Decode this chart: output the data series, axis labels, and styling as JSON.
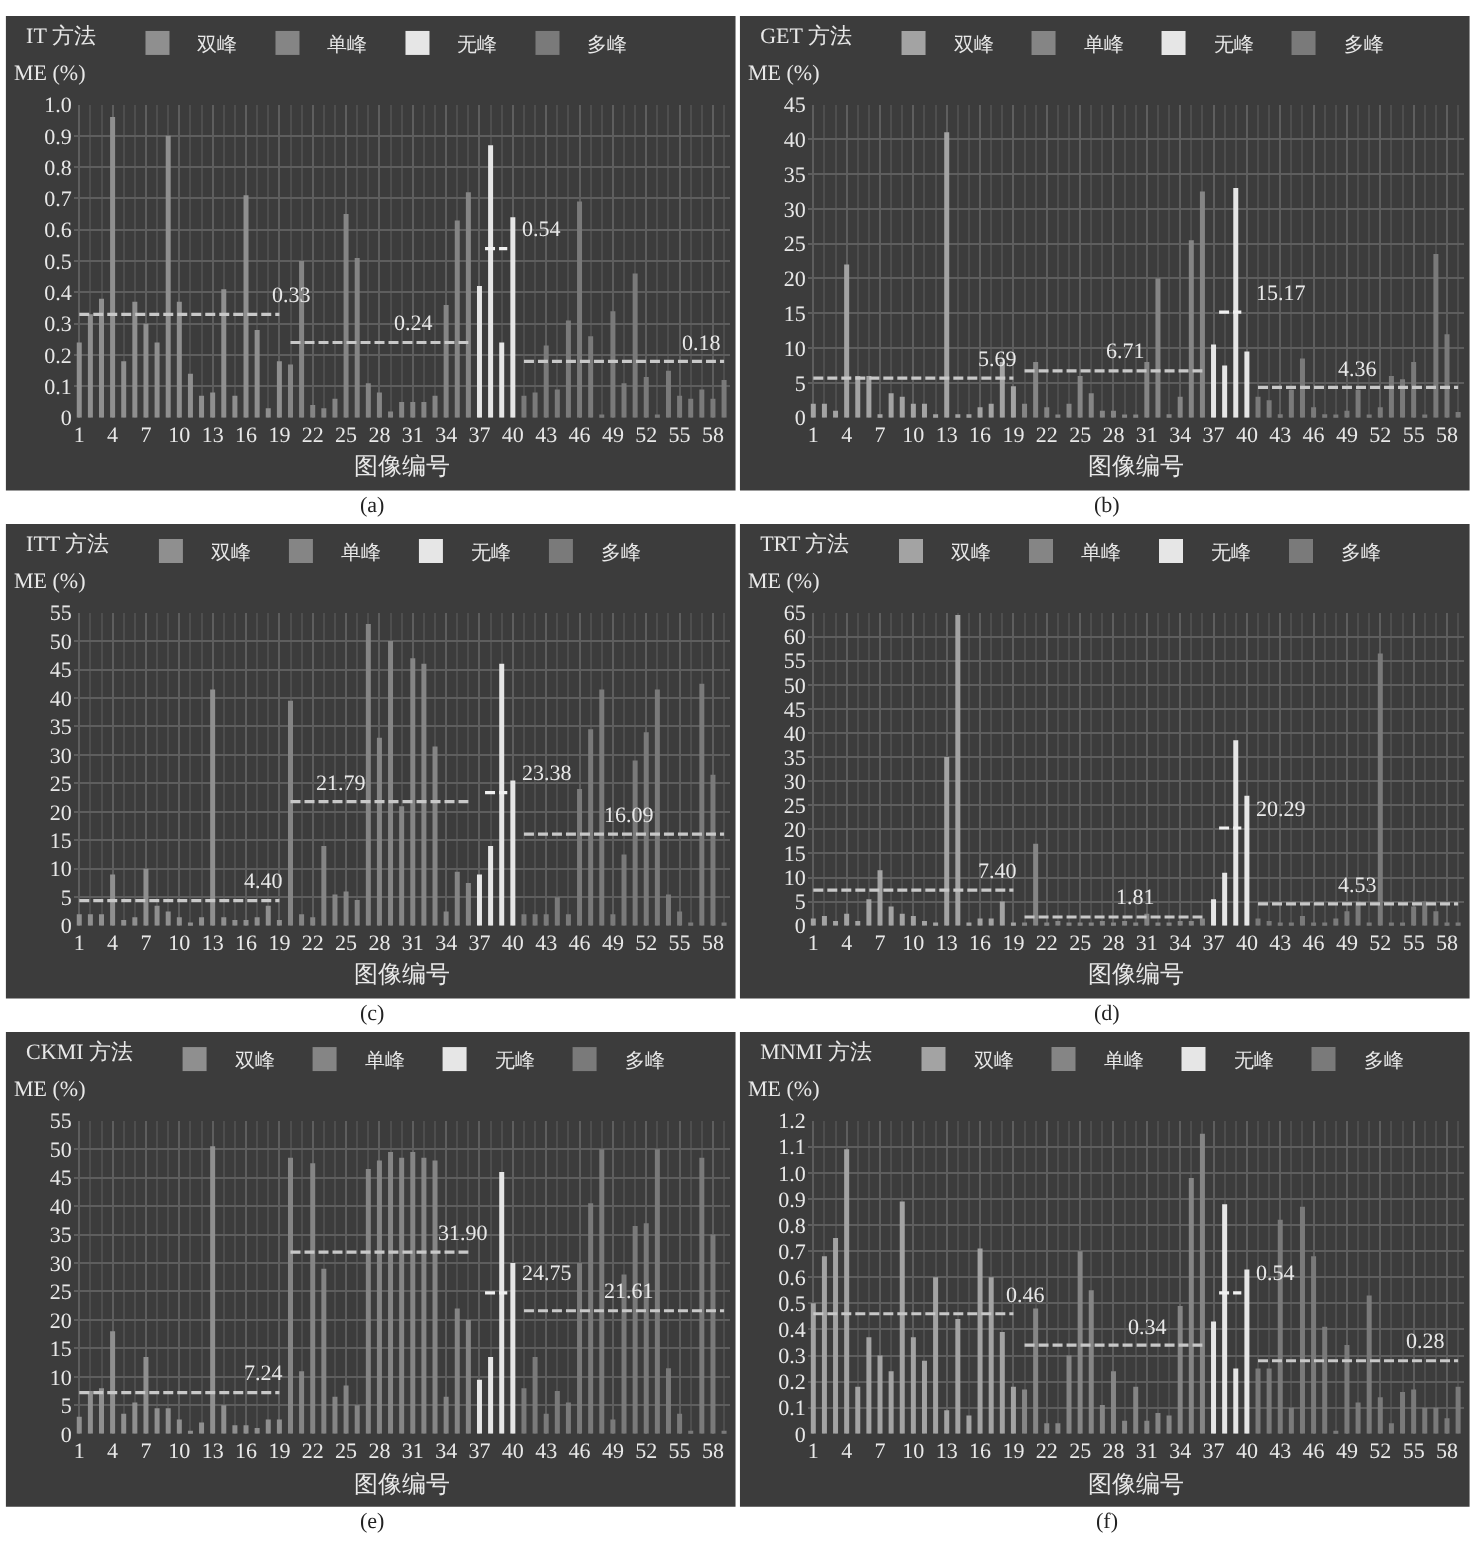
{
  "chart_data": [
    {
      "type": "bar",
      "title": "IT 方法",
      "xlabel": "图像编号",
      "ylabel": "ME (%)",
      "legend": "top",
      "grid": true,
      "xlim": [
        0.5,
        59.5
      ],
      "xticks": [
        1,
        4,
        7,
        10,
        13,
        16,
        19,
        22,
        25,
        28,
        31,
        34,
        37,
        40,
        43,
        46,
        49,
        52,
        55,
        58
      ],
      "ylim": [
        0,
        1
      ],
      "yticks": [
        0,
        0.1,
        0.2,
        0.3,
        0.4,
        0.5,
        0.6,
        0.7,
        0.8,
        0.9,
        {
          "value": 1,
          "label": "1.0"
        }
      ],
      "series": [
        {
          "name": "双峰",
          "color": "#8f8f8f",
          "x": [
            1,
            2,
            3,
            4,
            5,
            6,
            7,
            8,
            9,
            10,
            11,
            12,
            13,
            14,
            15,
            16,
            17,
            18,
            19
          ],
          "values": [
            0.24,
            0.33,
            0.38,
            0.96,
            0.18,
            0.37,
            0.3,
            0.24,
            0.9,
            0.37,
            0.14,
            0.07,
            0.08,
            0.41,
            0.07,
            0.71,
            0.28,
            0.03,
            0.18
          ]
        },
        {
          "name": "单峰",
          "color": "#858585",
          "x": [
            20,
            21,
            22,
            23,
            24,
            25,
            26,
            27,
            28,
            29,
            30,
            31,
            32,
            33,
            34,
            35,
            36
          ],
          "values": [
            0.17,
            0.5,
            0.04,
            0.03,
            0.06,
            0.65,
            0.51,
            0.11,
            0.08,
            0.02,
            0.05,
            0.05,
            0.05,
            0.07,
            0.36,
            0.63,
            0.72
          ]
        },
        {
          "name": "无峰",
          "color": "#e6e6e6",
          "x": [
            37,
            38,
            39,
            40
          ],
          "values": [
            0.42,
            0.87,
            0.24,
            0.64
          ]
        },
        {
          "name": "多峰",
          "color": "#7a7a7a",
          "x": [
            41,
            42,
            43,
            44,
            45,
            46,
            47,
            48,
            49,
            50,
            51,
            52,
            53,
            54,
            55,
            56,
            57,
            58,
            59
          ],
          "values": [
            0.07,
            0.08,
            0.23,
            0.09,
            0.31,
            0.69,
            0.26,
            0.01,
            0.34,
            0.11,
            0.46,
            0.13,
            0.01,
            0.15,
            0.07,
            0.06,
            0.09,
            0.06,
            0.12
          ]
        },
        {
          "type": "line",
          "color": "#c8c8c8",
          "line_style": "dashed",
          "x": [
            1,
            19
          ],
          "values": [
            0.33,
            0.33
          ]
        },
        {
          "type": "line",
          "color": "#c8c8c8",
          "line_style": "dashed",
          "x": [
            20,
            36
          ],
          "values": [
            0.24,
            0.24
          ]
        },
        {
          "type": "line",
          "color": "#f0f0f0",
          "line_style": "dashed",
          "x": [
            37.5,
            39.5
          ],
          "values": [
            0.54,
            0.54
          ]
        },
        {
          "type": "line",
          "color": "#c8c8c8",
          "line_style": "dashed",
          "x": [
            41,
            59
          ],
          "values": [
            0.18,
            0.18
          ]
        }
      ],
      "annotations": [
        {
          "text": "0.33",
          "x": 17,
          "y": 0.33
        },
        {
          "text": "0.24",
          "x": 28,
          "y": 0.24
        },
        {
          "text": "0.54",
          "x": 39.5,
          "y": 0.54
        },
        {
          "text": "0.18",
          "x": 54,
          "y": 0.18
        },
        "(a)"
      ]
    },
    {
      "type": "bar",
      "title": "GET 方法",
      "xlabel": "图像编号",
      "ylabel": "ME (%)",
      "legend": "top",
      "grid": true,
      "xlim": [
        0.5,
        59.5
      ],
      "xticks": [
        1,
        4,
        7,
        10,
        13,
        16,
        19,
        22,
        25,
        28,
        31,
        34,
        37,
        40,
        43,
        46,
        49,
        52,
        55,
        58
      ],
      "ylim": [
        0,
        45
      ],
      "yticks": [
        0,
        5,
        10,
        15,
        20,
        25,
        30,
        35,
        40,
        45
      ],
      "series": [
        {
          "name": "双峰",
          "color": "#a3a3a3",
          "x": [
            1,
            2,
            3,
            4,
            5,
            6,
            7,
            8,
            9,
            10,
            11,
            12,
            13,
            14,
            15,
            16,
            17,
            18,
            19
          ],
          "values": [
            2,
            2,
            1,
            22,
            6,
            6,
            0.5,
            3.5,
            3,
            2,
            2,
            0.5,
            41,
            0.5,
            0.5,
            1.5,
            2,
            8,
            4.5
          ]
        },
        {
          "name": "单峰",
          "color": "#858585",
          "x": [
            20,
            21,
            22,
            23,
            24,
            25,
            26,
            27,
            28,
            29,
            30,
            31,
            32,
            33,
            34,
            35,
            36
          ],
          "values": [
            2,
            8,
            1.5,
            0.3,
            2,
            6,
            3.5,
            1,
            1,
            0.3,
            0.3,
            8,
            20,
            0.5,
            3,
            25.5,
            32.5
          ]
        },
        {
          "name": "无峰",
          "color": "#e6e6e6",
          "x": [
            37,
            38,
            39,
            40
          ],
          "values": [
            10.5,
            7.5,
            33,
            9.5
          ]
        },
        {
          "name": "多峰",
          "color": "#7a7a7a",
          "x": [
            41,
            42,
            43,
            44,
            45,
            46,
            47,
            48,
            49,
            50,
            51,
            52,
            53,
            54,
            55,
            56,
            57,
            58,
            59
          ],
          "values": [
            3,
            2.5,
            0.5,
            4,
            8.5,
            1.5,
            0.5,
            0.3,
            1,
            4,
            0.3,
            1.5,
            6,
            5.5,
            8,
            0.3,
            23.5,
            12,
            0.8
          ]
        },
        {
          "type": "line",
          "color": "#c8c8c8",
          "line_style": "dashed",
          "x": [
            1,
            19
          ],
          "values": [
            5.69,
            5.69
          ]
        },
        {
          "type": "line",
          "color": "#c8c8c8",
          "line_style": "dashed",
          "x": [
            20,
            36
          ],
          "values": [
            6.71,
            6.71
          ]
        },
        {
          "type": "line",
          "color": "#f0f0f0",
          "line_style": "dashed",
          "x": [
            37.5,
            39.5
          ],
          "values": [
            15.17,
            15.17
          ]
        },
        {
          "type": "line",
          "color": "#c8c8c8",
          "line_style": "dashed",
          "x": [
            41,
            59
          ],
          "values": [
            4.36,
            4.36
          ]
        }
      ],
      "annotations": [
        {
          "text": "5.69",
          "x": 14.5,
          "y": 5.69
        },
        {
          "text": "6.71",
          "x": 26,
          "y": 6.71
        },
        {
          "text": "15.17",
          "x": 39.5,
          "y": 15.17
        },
        {
          "text": "4.36",
          "x": 47,
          "y": 4.36
        },
        "(b)"
      ]
    },
    {
      "type": "bar",
      "title": "ITT 方法",
      "xlabel": "图像编号",
      "ylabel": "ME (%)",
      "legend": "top",
      "grid": true,
      "xlim": [
        0.5,
        59.5
      ],
      "xticks": [
        1,
        4,
        7,
        10,
        13,
        16,
        19,
        22,
        25,
        28,
        31,
        34,
        37,
        40,
        43,
        46,
        49,
        52,
        55,
        58
      ],
      "ylim": [
        0,
        55
      ],
      "yticks": [
        0,
        5,
        10,
        15,
        20,
        25,
        30,
        35,
        40,
        45,
        50,
        55
      ],
      "series": [
        {
          "name": "双峰",
          "color": "#8f8f8f",
          "x": [
            1,
            2,
            3,
            4,
            5,
            6,
            7,
            8,
            9,
            10,
            11,
            12,
            13,
            14,
            15,
            16,
            17,
            18,
            19
          ],
          "values": [
            2,
            2,
            2,
            9,
            1,
            1.5,
            10,
            3.5,
            2.5,
            1.5,
            0.5,
            1.5,
            41.5,
            1.5,
            1,
            1,
            1.5,
            3.5,
            1
          ]
        },
        {
          "name": "单峰",
          "color": "#858585",
          "x": [
            20,
            21,
            22,
            23,
            24,
            25,
            26,
            27,
            28,
            29,
            30,
            31,
            32,
            33,
            34,
            35,
            36
          ],
          "values": [
            39.5,
            2,
            1.5,
            14,
            5.5,
            6,
            4.5,
            53,
            33,
            50,
            21,
            47,
            46,
            31.5,
            2.5,
            9.5,
            7.5
          ]
        },
        {
          "name": "无峰",
          "color": "#e6e6e6",
          "x": [
            37,
            38,
            39,
            40
          ],
          "values": [
            9,
            14,
            46,
            25.5
          ]
        },
        {
          "name": "多峰",
          "color": "#7a7a7a",
          "x": [
            41,
            42,
            43,
            44,
            45,
            46,
            47,
            48,
            49,
            50,
            51,
            52,
            53,
            54,
            55,
            56,
            57,
            58,
            59
          ],
          "values": [
            2,
            2,
            2,
            5,
            2,
            24,
            34.5,
            41.5,
            2,
            12.5,
            29,
            34,
            41.5,
            5.5,
            2.5,
            0.3,
            42.5,
            26.5,
            0.5
          ]
        },
        {
          "type": "line",
          "color": "#c8c8c8",
          "line_style": "dashed",
          "x": [
            1,
            19
          ],
          "values": [
            4.4,
            4.4
          ]
        },
        {
          "type": "line",
          "color": "#c8c8c8",
          "line_style": "dashed",
          "x": [
            20,
            36
          ],
          "values": [
            21.79,
            21.79
          ]
        },
        {
          "type": "line",
          "color": "#f0f0f0",
          "line_style": "dashed",
          "x": [
            37.5,
            39.5
          ],
          "values": [
            23.38,
            23.38
          ]
        },
        {
          "type": "line",
          "color": "#c8c8c8",
          "line_style": "dashed",
          "x": [
            41,
            59
          ],
          "values": [
            16.09,
            16.09
          ]
        }
      ],
      "annotations": [
        {
          "text": "4.40",
          "x": 14.5,
          "y": 4.4
        },
        {
          "text": "21.79",
          "x": 21,
          "y": 21.79
        },
        {
          "text": "23.38",
          "x": 39.5,
          "y": 23.38
        },
        {
          "text": "16.09",
          "x": 47,
          "y": 16.09
        },
        "(c)"
      ]
    },
    {
      "type": "bar",
      "title": "TRT 方法",
      "xlabel": "图像编号",
      "ylabel": "ME (%)",
      "legend": "top",
      "grid": true,
      "xlim": [
        0.5,
        59.5
      ],
      "xticks": [
        1,
        4,
        7,
        10,
        13,
        16,
        19,
        22,
        25,
        28,
        31,
        34,
        37,
        40,
        43,
        46,
        49,
        52,
        55,
        58
      ],
      "ylim": [
        0,
        65
      ],
      "yticks": [
        0,
        5,
        10,
        15,
        20,
        25,
        30,
        35,
        40,
        45,
        50,
        55,
        60,
        65
      ],
      "series": [
        {
          "name": "双峰",
          "color": "#a3a3a3",
          "x": [
            1,
            2,
            3,
            4,
            5,
            6,
            7,
            8,
            9,
            10,
            11,
            12,
            13,
            14,
            15,
            16,
            17,
            18,
            19
          ],
          "values": [
            1.5,
            2,
            1,
            2.5,
            1,
            5.5,
            11.5,
            4,
            2.5,
            2,
            1,
            0.5,
            35,
            64.5,
            0.3,
            1.5,
            1.5,
            5,
            0.5
          ]
        },
        {
          "name": "单峰",
          "color": "#858585",
          "x": [
            20,
            21,
            22,
            23,
            24,
            25,
            26,
            27,
            28,
            29,
            30,
            31,
            32,
            33,
            34,
            35,
            36
          ],
          "values": [
            0.5,
            17,
            0.5,
            1,
            0.5,
            0.5,
            0.5,
            1,
            0.5,
            1,
            0.5,
            2.5,
            0.5,
            0.5,
            1,
            1,
            1.5
          ]
        },
        {
          "name": "无峰",
          "color": "#e6e6e6",
          "x": [
            37,
            38,
            39,
            40
          ],
          "values": [
            5.5,
            11,
            38.5,
            27
          ]
        },
        {
          "name": "多峰",
          "color": "#7a7a7a",
          "x": [
            41,
            42,
            43,
            44,
            45,
            46,
            47,
            48,
            49,
            50,
            51,
            52,
            53,
            54,
            55,
            56,
            57,
            58,
            59
          ],
          "values": [
            1.5,
            1,
            0.3,
            0.5,
            2,
            0.5,
            0.3,
            1.5,
            3,
            5,
            0.5,
            56.5,
            0.3,
            0.5,
            4,
            5,
            3,
            0.5,
            0.5
          ]
        },
        {
          "type": "line",
          "color": "#c8c8c8",
          "line_style": "dashed",
          "x": [
            1,
            19
          ],
          "values": [
            7.4,
            7.4
          ]
        },
        {
          "type": "line",
          "color": "#c8c8c8",
          "line_style": "dashed",
          "x": [
            20,
            36
          ],
          "values": [
            1.81,
            1.81
          ]
        },
        {
          "type": "line",
          "color": "#f0f0f0",
          "line_style": "dashed",
          "x": [
            37.5,
            39.5
          ],
          "values": [
            20.29,
            20.29
          ]
        },
        {
          "type": "line",
          "color": "#c8c8c8",
          "line_style": "dashed",
          "x": [
            41,
            59
          ],
          "values": [
            4.53,
            4.53
          ]
        }
      ],
      "annotations": [
        {
          "text": "7.40",
          "x": 14.5,
          "y": 7.4
        },
        {
          "text": "1.81",
          "x": 27,
          "y": 1.81
        },
        {
          "text": "20.29",
          "x": 39.5,
          "y": 20.29
        },
        {
          "text": "4.53",
          "x": 47,
          "y": 4.53
        },
        "(d)"
      ]
    },
    {
      "type": "bar",
      "title": "CKMI 方法",
      "xlabel": "图像编号",
      "ylabel": "ME (%)",
      "legend": "top",
      "grid": true,
      "xlim": [
        0.5,
        59.5
      ],
      "xticks": [
        1,
        4,
        7,
        10,
        13,
        16,
        19,
        22,
        25,
        28,
        31,
        34,
        37,
        40,
        43,
        46,
        49,
        52,
        55,
        58
      ],
      "ylim": [
        0,
        55
      ],
      "yticks": [
        0,
        5,
        10,
        15,
        20,
        25,
        30,
        35,
        40,
        45,
        50,
        55
      ],
      "series": [
        {
          "name": "双峰",
          "color": "#8f8f8f",
          "x": [
            1,
            2,
            3,
            4,
            5,
            6,
            7,
            8,
            9,
            10,
            11,
            12,
            13,
            14,
            15,
            16,
            17,
            18,
            19
          ],
          "values": [
            3,
            7.5,
            8,
            18,
            3.5,
            5.5,
            13.5,
            4.5,
            4.5,
            2.5,
            0.5,
            2,
            50.5,
            5,
            1.5,
            1.5,
            1,
            2.5,
            2.5
          ]
        },
        {
          "name": "单峰",
          "color": "#858585",
          "x": [
            20,
            21,
            22,
            23,
            24,
            25,
            26,
            27,
            28,
            29,
            30,
            31,
            32,
            33,
            34,
            35,
            36
          ],
          "values": [
            48.5,
            11,
            47.5,
            29,
            6.5,
            8.5,
            5,
            46.5,
            48,
            49.5,
            48.5,
            49.5,
            48.5,
            48,
            6.5,
            22,
            20
          ]
        },
        {
          "name": "无峰",
          "color": "#e6e6e6",
          "x": [
            37,
            38,
            39,
            40
          ],
          "values": [
            9.5,
            13.5,
            46,
            30
          ]
        },
        {
          "name": "多峰",
          "color": "#7a7a7a",
          "x": [
            41,
            42,
            43,
            44,
            45,
            46,
            47,
            48,
            49,
            50,
            51,
            52,
            53,
            54,
            55,
            56,
            57,
            58,
            59
          ],
          "values": [
            8,
            13.5,
            3.5,
            7.5,
            5.5,
            30,
            40.5,
            50,
            2.5,
            28,
            36.5,
            37,
            50,
            11.5,
            3.5,
            0.5,
            48.5,
            35,
            0.5
          ]
        },
        {
          "type": "line",
          "color": "#c8c8c8",
          "line_style": "dashed",
          "x": [
            1,
            19
          ],
          "values": [
            7.24,
            7.24
          ]
        },
        {
          "type": "line",
          "color": "#c8c8c8",
          "line_style": "dashed",
          "x": [
            20,
            36
          ],
          "values": [
            31.9,
            31.9
          ]
        },
        {
          "type": "line",
          "color": "#f0f0f0",
          "line_style": "dashed",
          "x": [
            37.5,
            39.5
          ],
          "values": [
            24.75,
            24.75
          ]
        },
        {
          "type": "line",
          "color": "#c8c8c8",
          "line_style": "dashed",
          "x": [
            41,
            59
          ],
          "values": [
            21.61,
            21.61
          ]
        }
      ],
      "annotations": [
        {
          "text": "7.24",
          "x": 14.5,
          "y": 7.24
        },
        {
          "text": "31.90",
          "x": 32,
          "y": 31.9
        },
        {
          "text": "24.75",
          "x": 39.5,
          "y": 24.75
        },
        {
          "text": "21.61",
          "x": 47,
          "y": 21.61
        },
        "(e)"
      ]
    },
    {
      "type": "bar",
      "title": "MNMI 方法",
      "xlabel": "图像编号",
      "ylabel": "ME (%)",
      "legend": "top",
      "grid": true,
      "xlim": [
        0.5,
        59.5
      ],
      "xticks": [
        1,
        4,
        7,
        10,
        13,
        16,
        19,
        22,
        25,
        28,
        31,
        34,
        37,
        40,
        43,
        46,
        49,
        52,
        55,
        58
      ],
      "ylim": [
        0,
        1.2
      ],
      "yticks": [
        0,
        0.1,
        0.2,
        0.3,
        0.4,
        0.5,
        0.6,
        0.7,
        0.8,
        0.9,
        {
          "value": 1,
          "label": "1.0"
        },
        1.1,
        1.2
      ],
      "series": [
        {
          "name": "双峰",
          "color": "#a3a3a3",
          "x": [
            1,
            2,
            3,
            4,
            5,
            6,
            7,
            8,
            9,
            10,
            11,
            12,
            13,
            14,
            15,
            16,
            17,
            18,
            19
          ],
          "values": [
            0.5,
            0.68,
            0.75,
            1.09,
            0.18,
            0.37,
            0.3,
            0.24,
            0.89,
            0.37,
            0.28,
            0.6,
            0.09,
            0.44,
            0.07,
            0.71,
            0.6,
            0.39,
            0.18
          ]
        },
        {
          "name": "单峰",
          "color": "#858585",
          "x": [
            20,
            21,
            22,
            23,
            24,
            25,
            26,
            27,
            28,
            29,
            30,
            31,
            32,
            33,
            34,
            35,
            36
          ],
          "values": [
            0.17,
            0.48,
            0.04,
            0.04,
            0.3,
            0.7,
            0.55,
            0.11,
            0.24,
            0.05,
            0.18,
            0.05,
            0.08,
            0.07,
            0.49,
            0.98,
            1.15
          ]
        },
        {
          "name": "无峰",
          "color": "#e6e6e6",
          "x": [
            37,
            38,
            39,
            40
          ],
          "values": [
            0.43,
            0.88,
            0.25,
            0.63
          ]
        },
        {
          "name": "多峰",
          "color": "#7a7a7a",
          "x": [
            41,
            42,
            43,
            44,
            45,
            46,
            47,
            48,
            49,
            50,
            51,
            52,
            53,
            54,
            55,
            56,
            57,
            58,
            59
          ],
          "values": [
            0.25,
            0.25,
            0.82,
            0.1,
            0.87,
            0.68,
            0.41,
            0.01,
            0.34,
            0.12,
            0.53,
            0.14,
            0.04,
            0.16,
            0.17,
            0.1,
            0.1,
            0.06,
            0.18
          ]
        },
        {
          "type": "line",
          "color": "#c8c8c8",
          "line_style": "dashed",
          "x": [
            1,
            19
          ],
          "values": [
            0.46,
            0.46
          ]
        },
        {
          "type": "line",
          "color": "#c8c8c8",
          "line_style": "dashed",
          "x": [
            20,
            36
          ],
          "values": [
            0.34,
            0.34
          ]
        },
        {
          "type": "line",
          "color": "#f0f0f0",
          "line_style": "dashed",
          "x": [
            37.5,
            39.5
          ],
          "values": [
            0.54,
            0.54
          ]
        },
        {
          "type": "line",
          "color": "#c8c8c8",
          "line_style": "dashed",
          "x": [
            41,
            59
          ],
          "values": [
            0.28,
            0.28
          ]
        }
      ],
      "annotations": [
        {
          "text": "0.46",
          "x": 17,
          "y": 0.46
        },
        {
          "text": "0.34",
          "x": 28,
          "y": 0.34
        },
        {
          "text": "0.54",
          "x": 39.5,
          "y": 0.54
        },
        {
          "text": "0.28",
          "x": 53,
          "y": 0.28
        },
        "(f)"
      ]
    }
  ]
}
